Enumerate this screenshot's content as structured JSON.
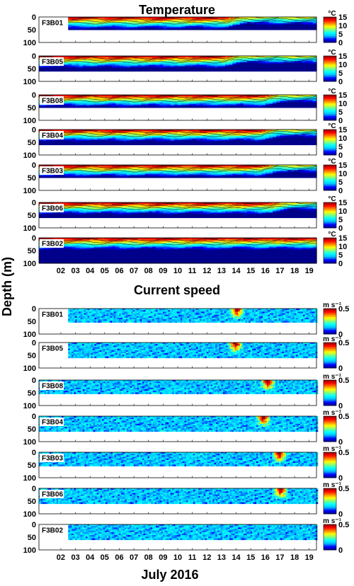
{
  "figure": {
    "y_label": "Depth (m)",
    "x_label": "July 2016",
    "x_ticks": [
      "02",
      "03",
      "04",
      "05",
      "06",
      "07",
      "08",
      "09",
      "10",
      "11",
      "12",
      "13",
      "14",
      "15",
      "16",
      "17",
      "18",
      "19"
    ],
    "colors": {
      "cmap": [
        "#00008b",
        "#0000ff",
        "#00bfff",
        "#00ffff",
        "#7fff7f",
        "#ffff00",
        "#ff8000",
        "#ff0000",
        "#8b0000"
      ]
    }
  },
  "chart_data": [
    {
      "type": "heatmap",
      "title": "Temperature",
      "unit": "°C",
      "colorbar_ticks": [
        "15",
        "10",
        "5",
        "0"
      ],
      "vlim": [
        0,
        15
      ],
      "ylim": [
        100,
        0
      ],
      "y_ticks": [
        "0",
        "50",
        "100"
      ],
      "panels": [
        {
          "name": "F3B01",
          "bottom_depth": 50,
          "day_start": 3,
          "cold_event_day": 14.5
        },
        {
          "name": "F3B05",
          "bottom_depth": 60,
          "day_start": 1,
          "cold_event_day": 14.3
        },
        {
          "name": "F3B08",
          "bottom_depth": 50,
          "day_start": 1,
          "cold_event_day": 17.0
        },
        {
          "name": "F3B04",
          "bottom_depth": 60,
          "day_start": 1,
          "cold_event_day": 16.8
        },
        {
          "name": "F3B03",
          "bottom_depth": 50,
          "day_start": 1,
          "cold_event_day": 16.8
        },
        {
          "name": "F3B06",
          "bottom_depth": 60,
          "day_start": 1,
          "cold_event_day": 17.5
        },
        {
          "name": "F3B02",
          "bottom_depth": 100,
          "day_start": 1,
          "cold_event_day": 0
        }
      ]
    },
    {
      "type": "heatmap",
      "title": "Current speed",
      "unit": "m s⁻¹",
      "colorbar_ticks": [
        "0.5",
        "0"
      ],
      "vlim": [
        0,
        0.5
      ],
      "ylim": [
        100,
        0
      ],
      "y_ticks": [
        "0",
        "50",
        "100"
      ],
      "panels": [
        {
          "name": "F3B01",
          "bottom_depth": 50,
          "day_start": 3,
          "hotspot_day": 14.5
        },
        {
          "name": "F3B05",
          "bottom_depth": 60,
          "day_start": 3,
          "hotspot_day": 14.4
        },
        {
          "name": "F3B08",
          "bottom_depth": 50,
          "day_start": 1,
          "hotspot_day": 16.6
        },
        {
          "name": "F3B04",
          "bottom_depth": 60,
          "day_start": 1,
          "hotspot_day": 16.3
        },
        {
          "name": "F3B03",
          "bottom_depth": 50,
          "day_start": 1,
          "hotspot_day": 17.4
        },
        {
          "name": "F3B06",
          "bottom_depth": 60,
          "day_start": 1,
          "hotspot_day": 17.5
        },
        {
          "name": "F3B02",
          "bottom_depth": 60,
          "day_start": 3,
          "hotspot_day": 0
        }
      ]
    }
  ]
}
